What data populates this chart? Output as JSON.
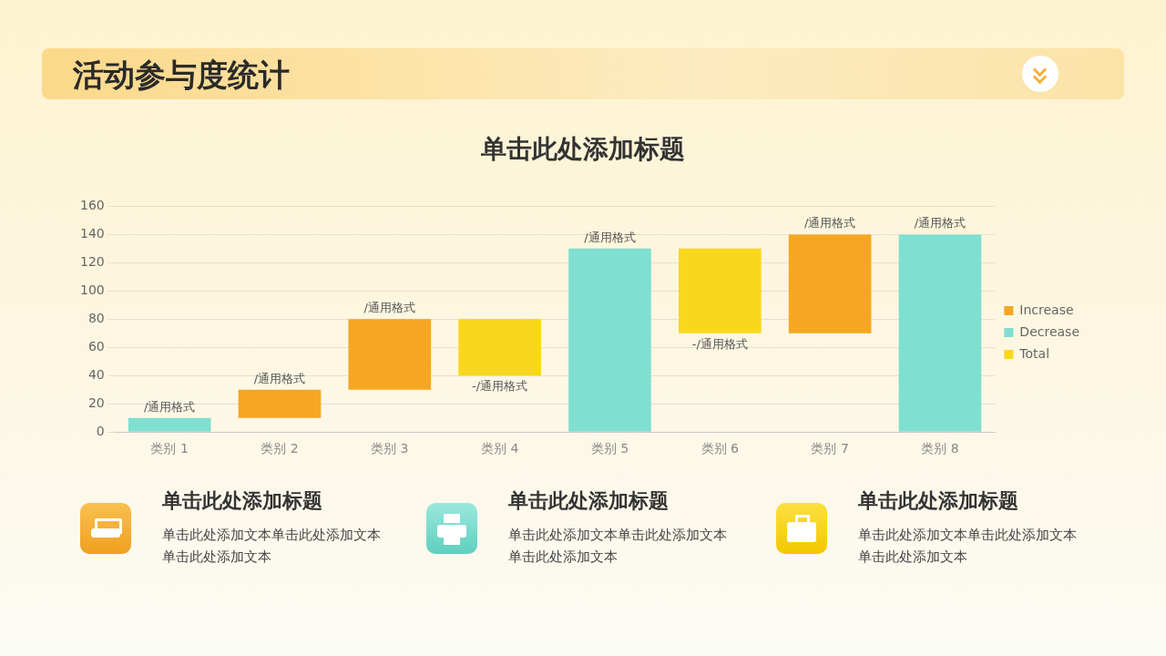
{
  "chart_data": {
    "type": "bar",
    "title": "活动参与度统计",
    "subtitle": "单击此处添加标题",
    "categories": [
      "类别 1",
      "类别 2",
      "类别 3",
      "类别 4",
      "类别 5",
      "类别 6",
      "类别 7",
      "类别 8"
    ],
    "series": [
      {
        "name": "Increase",
        "color": "#f5a623",
        "base": [
          null,
          10,
          30,
          null,
          null,
          null,
          70,
          null
        ],
        "values": [
          null,
          20,
          50,
          null,
          null,
          null,
          70,
          null
        ],
        "value_labels": [
          null,
          "/通用格式",
          "/通用格式",
          null,
          null,
          null,
          "/通用格式",
          null
        ]
      },
      {
        "name": "Decrease",
        "color": "#7fdfd0",
        "values": [
          10,
          null,
          null,
          null,
          130,
          null,
          null,
          140
        ],
        "value_labels": [
          "/通用格式",
          null,
          null,
          null,
          "/通用格式",
          null,
          null,
          "/通用格式"
        ]
      },
      {
        "name": "Total",
        "color": "#f9d71c",
        "base": [
          null,
          null,
          null,
          80,
          null,
          130,
          null,
          null
        ],
        "values": [
          null,
          null,
          null,
          -40,
          null,
          -60,
          null,
          null
        ],
        "value_labels": [
          null,
          null,
          null,
          "-/通用格式",
          null,
          "-/通用格式",
          null,
          null
        ]
      }
    ],
    "ylim": [
      0,
      160
    ],
    "yticks": [
      0,
      20,
      40,
      60,
      80,
      100,
      120,
      140,
      160
    ],
    "grid": "y",
    "legend": "right",
    "annotations": [
      "单击此处添加标题",
      "单击此处添加文本单击此处添加文本单击此处添加文本",
      "单击此处添加标题",
      "单击此处添加文本单击此处添加文本单击此处添加文本",
      "单击此处添加标题",
      "单击此处添加文本单击此处添加文本单击此处添加文本"
    ]
  }
}
